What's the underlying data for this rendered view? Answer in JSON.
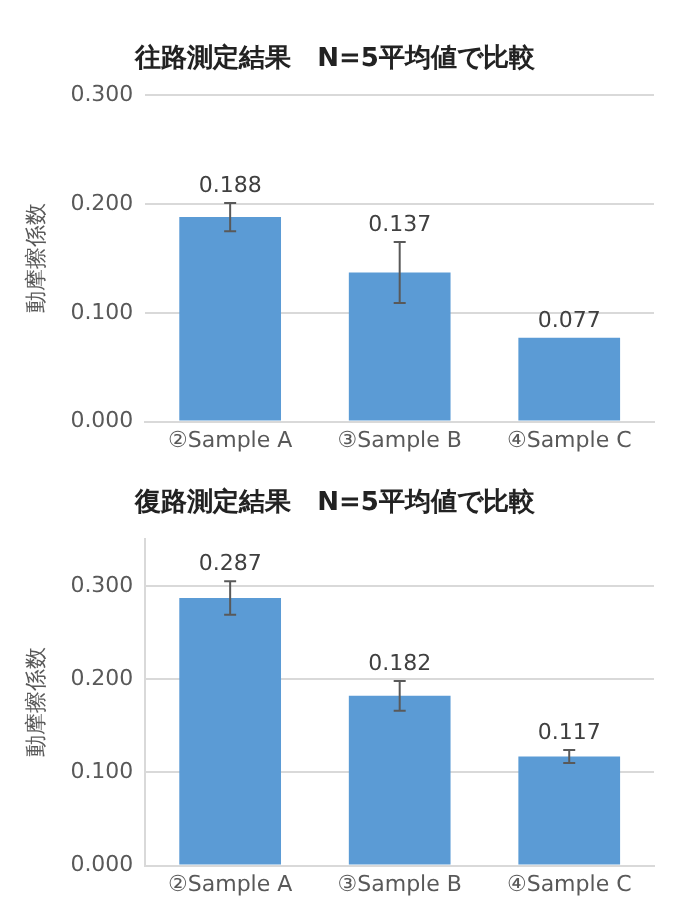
{
  "chart_data": [
    {
      "type": "bar",
      "title": "往路測定結果　N=5平均値で比較",
      "ylabel": "動摩擦係数",
      "categories": [
        "②Sample A",
        "③Sample B",
        "④Sample C"
      ],
      "values": [
        0.188,
        0.137,
        0.077
      ],
      "errors": [
        0.013,
        0.028,
        null
      ],
      "color": "#5b9bd5",
      "ylim": [
        0,
        0.3
      ],
      "yticks": [
        {
          "value": 0,
          "label": "0.000"
        },
        {
          "value": 0.1,
          "label": "0.100"
        },
        {
          "value": 0.2,
          "label": "0.200"
        },
        {
          "value": 0.3,
          "label": "0.300"
        }
      ],
      "grid": "y",
      "data_labels": true
    },
    {
      "type": "bar",
      "title": "復路測定結果　N=5平均値で比較",
      "ylabel": "動摩擦係数",
      "categories": [
        "②Sample A",
        "③Sample B",
        "④Sample C"
      ],
      "values": [
        0.287,
        0.182,
        0.117
      ],
      "errors": [
        0.018,
        0.016,
        0.007
      ],
      "color": "#5b9bd5",
      "ylim": [
        0,
        0.35
      ],
      "yticks": [
        {
          "value": 0,
          "label": "0.000"
        },
        {
          "value": 0.1,
          "label": "0.100"
        },
        {
          "value": 0.2,
          "label": "0.200"
        },
        {
          "value": 0.3,
          "label": "0.300"
        }
      ],
      "grid": "y",
      "data_labels": true
    }
  ]
}
